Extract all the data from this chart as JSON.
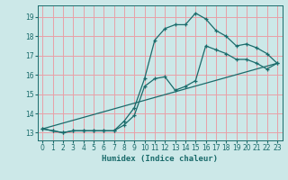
{
  "title": "",
  "xlabel": "Humidex (Indice chaleur)",
  "bg_color": "#cce8e8",
  "grid_color": "#e8a0a8",
  "line_color": "#1a6b6b",
  "xlim": [
    -0.5,
    23.5
  ],
  "ylim": [
    12.6,
    19.6
  ],
  "xticks": [
    0,
    1,
    2,
    3,
    4,
    5,
    6,
    7,
    8,
    9,
    10,
    11,
    12,
    13,
    14,
    15,
    16,
    17,
    18,
    19,
    20,
    21,
    22,
    23
  ],
  "yticks": [
    13,
    14,
    15,
    16,
    17,
    18,
    19
  ],
  "line1_x": [
    0,
    1,
    2,
    3,
    4,
    5,
    6,
    7,
    8,
    9,
    10,
    11,
    12,
    13,
    14,
    15,
    16,
    17,
    18,
    19,
    20,
    21,
    22,
    23
  ],
  "line1_y": [
    13.2,
    13.1,
    13.0,
    13.1,
    13.1,
    13.1,
    13.1,
    13.1,
    13.6,
    14.3,
    15.8,
    17.8,
    18.4,
    18.6,
    18.6,
    19.2,
    18.9,
    18.3,
    18.0,
    17.5,
    17.6,
    17.4,
    17.1,
    16.6
  ],
  "line2_x": [
    0,
    1,
    2,
    3,
    4,
    5,
    6,
    7,
    8,
    9,
    10,
    11,
    12,
    13,
    14,
    15,
    16,
    17,
    18,
    19,
    20,
    21,
    22,
    23
  ],
  "line2_y": [
    13.2,
    13.1,
    13.0,
    13.1,
    13.1,
    13.1,
    13.1,
    13.1,
    13.4,
    13.9,
    15.4,
    15.8,
    15.9,
    15.2,
    15.4,
    15.7,
    17.5,
    17.3,
    17.1,
    16.8,
    16.8,
    16.6,
    16.3,
    16.6
  ],
  "line3_x": [
    0,
    23
  ],
  "line3_y": [
    13.2,
    16.6
  ]
}
